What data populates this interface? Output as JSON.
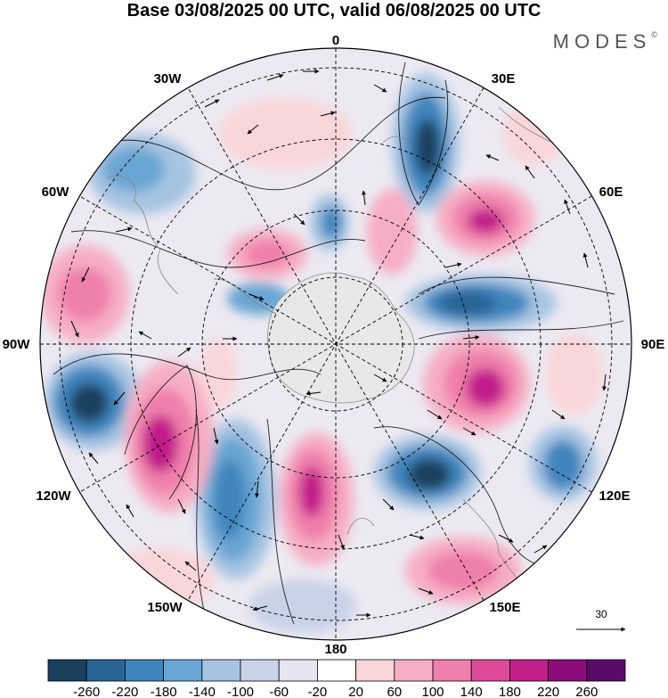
{
  "title": "Base 03/08/2025 00 UTC, valid 06/08/2025 00 UTC",
  "brand": "MODES",
  "brand_mark": "©",
  "longitude_labels": {
    "lon_0": "0",
    "lon_30e": "30E",
    "lon_60e": "60E",
    "lon_90e": "90E",
    "lon_120e": "120E",
    "lon_150e": "150E",
    "lon_180": "180",
    "lon_150w": "150W",
    "lon_120w": "120W",
    "lon_90w": "90W",
    "lon_60w": "60W",
    "lon_30w": "30W"
  },
  "reference_vector": {
    "label": "30"
  },
  "colorbar": {
    "ticks": [
      "-260",
      "-220",
      "-180",
      "-140",
      "-100",
      "-60",
      "-20",
      "20",
      "60",
      "100",
      "140",
      "180",
      "220",
      "260"
    ],
    "colors": [
      "#1b3f5e",
      "#2a6496",
      "#3f85bd",
      "#6aa6d3",
      "#a6c4e2",
      "#c8d3e8",
      "#e4e4f2",
      "#ffffff",
      "#fad6d8",
      "#f7aec4",
      "#ef7fac",
      "#dd4b98",
      "#c21f8a",
      "#8e0c79",
      "#5a0a6b"
    ]
  },
  "colors": {
    "land": "#e8e8e8",
    "grid": "#000000",
    "coast": "#888888"
  }
}
